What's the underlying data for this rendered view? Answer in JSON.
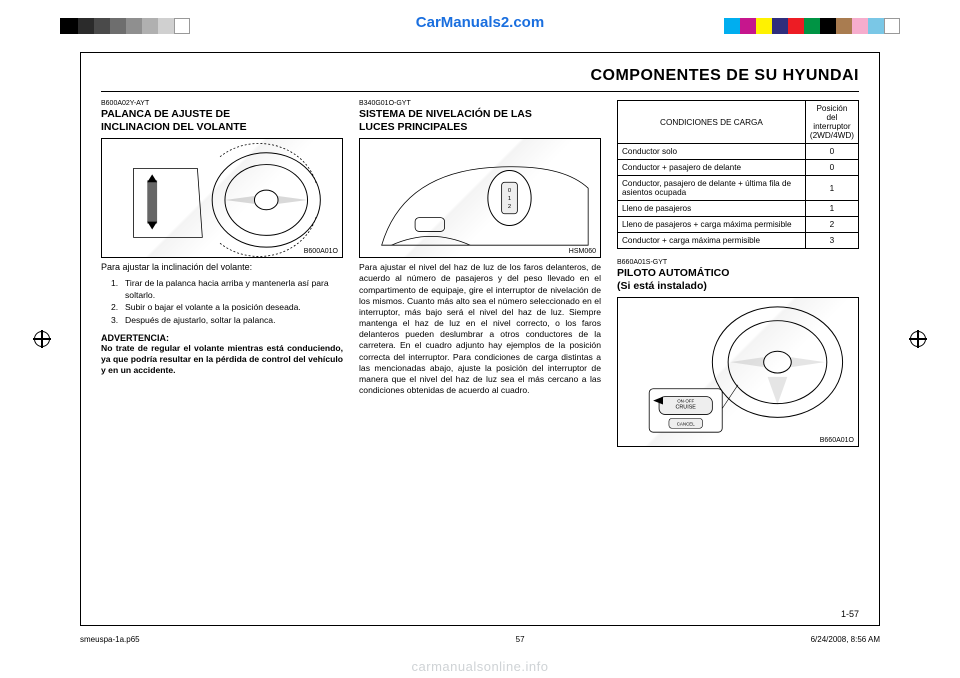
{
  "colorbars": {
    "left": [
      {
        "c": "#000000",
        "w": 18
      },
      {
        "c": "#2b2b2b",
        "w": 16
      },
      {
        "c": "#4a4a4a",
        "w": 16
      },
      {
        "c": "#6e6e6e",
        "w": 16
      },
      {
        "c": "#8f8f8f",
        "w": 16
      },
      {
        "c": "#b0b0b0",
        "w": 16
      },
      {
        "c": "#d0d0d0",
        "w": 16
      },
      {
        "c": "#ffffff",
        "w": 16
      }
    ],
    "right": [
      {
        "c": "#00aeef",
        "w": 16
      },
      {
        "c": "#c6168d",
        "w": 16
      },
      {
        "c": "#fff200",
        "w": 16
      },
      {
        "c": "#2f2e7d",
        "w": 16
      },
      {
        "c": "#ed1c24",
        "w": 16
      },
      {
        "c": "#009444",
        "w": 16
      },
      {
        "c": "#000000",
        "w": 16
      },
      {
        "c": "#a97c50",
        "w": 16
      },
      {
        "c": "#f6adcd",
        "w": 16
      },
      {
        "c": "#7ac7e6",
        "w": 16
      },
      {
        "c": "#ffffff",
        "w": 16
      }
    ]
  },
  "brand": "CarManuals2.com",
  "header_title": "COMPONENTES  DE  SU  HYUNDAI",
  "col1": {
    "code": "B600A02Y-AYT",
    "title": "PALANCA DE AJUSTE DE",
    "subtitle": "INCLINACION DEL VOLANTE",
    "fig_label": "B600A01O",
    "caption": "Para ajustar la inclinación del volante:",
    "steps": [
      "Tirar de la palanca hacia arriba y mantenerla así para soltarlo.",
      "Subir o bajar el volante a la posición deseada.",
      "Después de ajustarlo, soltar la palanca."
    ],
    "warn_h": "ADVERTENCIA:",
    "warn_b": "No trate de regular el volante mientras está conduciendo, ya que podría resultar en la pérdida de control del vehículo y en un accidente."
  },
  "col2": {
    "code": "B340G01O-GYT",
    "title": "SISTEMA DE NIVELACIÓN DE LAS",
    "subtitle": "LUCES PRINCIPALES",
    "fig_label": "HSM060",
    "body": "Para ajustar el nivel del haz de luz de los faros delanteros, de acuerdo al número de pasajeros y del peso llevado en el compartimento de equipaje, gire el interruptor de nivelación de los mismos. Cuanto más alto sea el número seleccionado en el interruptor, más bajo será el nivel del haz de luz. Siempre mantenga el haz de luz en el nivel correcto, o los faros delanteros pueden deslumbrar a otros conductores de la carretera. En el cuadro adjunto hay ejemplos de la posición correcta del interruptor. Para condiciones de carga distintas a las mencionadas abajo, ajuste la posición del interruptor de manera que el nivel del haz de luz sea el más cercano a las condiciones obtenidas de acuerdo al cuadro."
  },
  "table": {
    "head_left": "CONDICIONES DE CARGA",
    "head_right_l1": "Posición del",
    "head_right_l2": "interruptor",
    "head_right_l3": "(2WD/4WD)",
    "rows": [
      {
        "label": "Conductor solo",
        "val": "0"
      },
      {
        "label": "Conductor + pasajero de delante",
        "val": "0"
      },
      {
        "label": "Conductor, pasajero de delante + última fila de asientos ocupada",
        "val": "1"
      },
      {
        "label": "Lleno de pasajeros",
        "val": "1"
      },
      {
        "label": "Lleno de pasajeros + carga máxima permisible",
        "val": "2"
      },
      {
        "label": "Conductor + carga máxima permisible",
        "val": "3"
      }
    ]
  },
  "col3": {
    "code": "B660A01S-GYT",
    "title": "PILOTO AUTOMÁTICO",
    "subtitle": "(Si está instalado)",
    "fig_label": "B660A01O"
  },
  "page_number": "1-57",
  "footer": {
    "file": "smeuspa-1a.p65",
    "page": "57",
    "timestamp": "6/24/2008, 8:56 AM"
  },
  "watermark": "carmanualsonline.info"
}
